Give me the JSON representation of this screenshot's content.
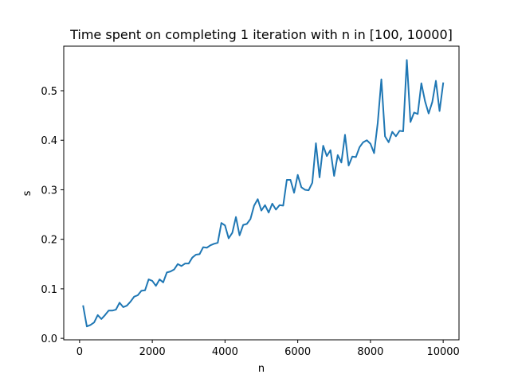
{
  "chart_data": {
    "type": "line",
    "title": "Time spent on completing 1 iteration with n in [100, 10000]",
    "xlabel": "n",
    "ylabel": "s",
    "xlim": [
      -435,
      10435
    ],
    "ylim": [
      -0.003,
      0.59
    ],
    "xticks": [
      0,
      2000,
      4000,
      6000,
      8000,
      10000
    ],
    "yticks": [
      0.0,
      0.1,
      0.2,
      0.3,
      0.4,
      0.5
    ],
    "xtick_labels": [
      "0",
      "2000",
      "4000",
      "6000",
      "8000",
      "10000"
    ],
    "ytick_labels": [
      "0.0",
      "0.1",
      "0.2",
      "0.3",
      "0.4",
      "0.5"
    ],
    "grid": false,
    "legend": null,
    "color": "#1f77b4",
    "series": [
      {
        "x": [
          100,
          200,
          300,
          400,
          500,
          600,
          700,
          800,
          900,
          1000,
          1100,
          1200,
          1300,
          1400,
          1500,
          1600,
          1700,
          1800,
          1900,
          2000,
          2100,
          2200,
          2300,
          2400,
          2500,
          2600,
          2700,
          2800,
          2900,
          3000,
          3100,
          3200,
          3300,
          3400,
          3500,
          3600,
          3700,
          3800,
          3900,
          4000,
          4100,
          4200,
          4300,
          4400,
          4500,
          4600,
          4700,
          4800,
          4900,
          5000,
          5100,
          5200,
          5300,
          5400,
          5500,
          5600,
          5700,
          5800,
          5900,
          6000,
          6100,
          6200,
          6300,
          6400,
          6500,
          6600,
          6700,
          6800,
          6900,
          7000,
          7100,
          7200,
          7300,
          7400,
          7500,
          7600,
          7700,
          7800,
          7900,
          8000,
          8100,
          8200,
          8300,
          8400,
          8500,
          8600,
          8700,
          8800,
          8900,
          9000,
          9100,
          9200,
          9300,
          9400,
          9500,
          9600,
          9700,
          9800,
          9900,
          10000
        ],
        "y": [
          0.065,
          0.024,
          0.027,
          0.032,
          0.047,
          0.039,
          0.047,
          0.056,
          0.056,
          0.058,
          0.072,
          0.063,
          0.066,
          0.074,
          0.084,
          0.087,
          0.096,
          0.097,
          0.119,
          0.116,
          0.106,
          0.119,
          0.113,
          0.133,
          0.135,
          0.139,
          0.15,
          0.146,
          0.151,
          0.151,
          0.163,
          0.169,
          0.17,
          0.184,
          0.183,
          0.188,
          0.191,
          0.193,
          0.233,
          0.228,
          0.202,
          0.213,
          0.245,
          0.208,
          0.229,
          0.231,
          0.241,
          0.268,
          0.281,
          0.258,
          0.269,
          0.254,
          0.272,
          0.26,
          0.269,
          0.268,
          0.32,
          0.32,
          0.294,
          0.33,
          0.305,
          0.3,
          0.299,
          0.314,
          0.394,
          0.325,
          0.389,
          0.368,
          0.38,
          0.328,
          0.37,
          0.355,
          0.411,
          0.349,
          0.367,
          0.366,
          0.386,
          0.396,
          0.4,
          0.393,
          0.374,
          0.435,
          0.523,
          0.408,
          0.396,
          0.417,
          0.408,
          0.419,
          0.418,
          0.562,
          0.437,
          0.456,
          0.453,
          0.515,
          0.479,
          0.454,
          0.477,
          0.52,
          0.459,
          0.515
        ]
      }
    ]
  }
}
